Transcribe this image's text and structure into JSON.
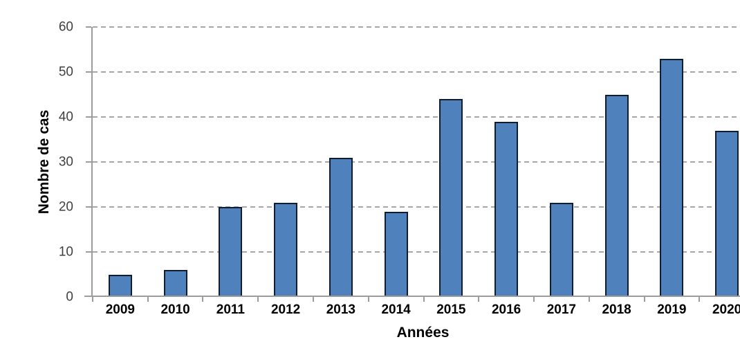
{
  "chart_data": {
    "type": "bar",
    "title": "",
    "categories": [
      "2009",
      "2010",
      "2011",
      "2012",
      "2013",
      "2014",
      "2015",
      "2016",
      "2017",
      "2018",
      "2019",
      "2020"
    ],
    "values": [
      5,
      6,
      20,
      21,
      31,
      19,
      44,
      39,
      21,
      45,
      53,
      37
    ],
    "xlabel": "Années",
    "ylabel": "Nombre de cas",
    "ylim": [
      0,
      60
    ],
    "yticks": [
      0,
      10,
      20,
      30,
      40,
      50,
      60
    ],
    "grid": "horizontal-dashed",
    "legend_position": "none"
  },
  "style": {
    "bar_fill": "#4F81BD",
    "bar_border": "#111C2E",
    "axis_color": "#9C9C9C",
    "gridline_color": "#A6A6A6",
    "ytick_label_color": "#3F3F3F",
    "text_color": "#000000",
    "background": "#FFFFFF"
  }
}
